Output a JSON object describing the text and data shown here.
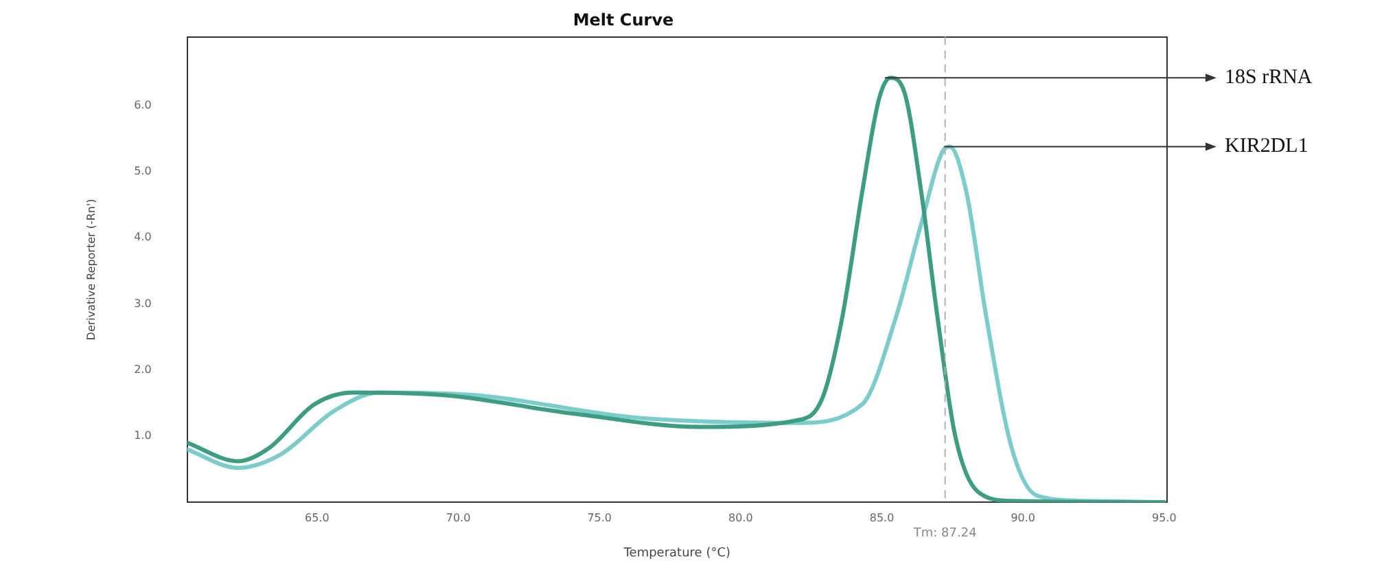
{
  "chart_data": {
    "type": "line",
    "title": "Melt Curve",
    "xlabel": "Temperature (°C)",
    "ylabel": "Derivative Reporter (-Rn')",
    "xlim": [
      60.4,
      95.1
    ],
    "xticks": [
      {
        "value": 65,
        "label": "65.0"
      },
      {
        "value": 70,
        "label": "70.0"
      },
      {
        "value": 75,
        "label": "75.0"
      },
      {
        "value": 80,
        "label": "80.0"
      },
      {
        "value": 85,
        "label": "85.0"
      },
      {
        "value": 90,
        "label": "90.0"
      },
      {
        "value": 95,
        "label": "95.0"
      }
    ],
    "ylim": [
      0,
      7.04
    ],
    "yticks": [
      {
        "value": 1,
        "label": "1.0"
      },
      {
        "value": 2,
        "label": "2.0"
      },
      {
        "value": 3,
        "label": "3.0"
      },
      {
        "value": 4,
        "label": "4.0"
      },
      {
        "value": 5,
        "label": "5.0"
      },
      {
        "value": 6,
        "label": "6.0"
      }
    ],
    "grid": false,
    "legend": false,
    "marker": "none",
    "line_style": "solid",
    "ref_lines": [
      {
        "axis": "x",
        "value": 87.24,
        "label": "Tm: 87.24",
        "color": "#b0b0b0",
        "line_style": "dashed"
      }
    ],
    "series": [
      {
        "name": "18S rRNA",
        "color": "#3d9c82",
        "x": [
          60.4,
          62.2,
          63.3,
          64.9,
          66.3,
          69.5,
          74.1,
          78.6,
          82.0,
          82.9,
          83.6,
          84.3,
          84.9,
          85.3,
          85.8,
          86.4,
          86.97,
          87.6,
          88.4,
          89.6,
          95.0
        ],
        "values": [
          0.9,
          0.62,
          0.82,
          1.48,
          1.66,
          1.62,
          1.34,
          1.14,
          1.24,
          1.58,
          2.8,
          4.68,
          6.1,
          6.42,
          6.2,
          4.68,
          2.8,
          1.0,
          0.16,
          0.02,
          0.0
        ]
      },
      {
        "name": "KIR2DL1",
        "color": "#7ccccc",
        "x": [
          60.4,
          62.2,
          63.7,
          65.6,
          67.2,
          70.6,
          76.3,
          82.0,
          84.3,
          85.5,
          86.4,
          87.2,
          87.4,
          88.0,
          88.7,
          89.6,
          90.5,
          92.3,
          95.0
        ],
        "values": [
          0.8,
          0.52,
          0.72,
          1.38,
          1.66,
          1.62,
          1.28,
          1.2,
          1.48,
          2.8,
          4.22,
          5.34,
          5.38,
          4.68,
          2.8,
          0.82,
          0.1,
          0.02,
          0.0
        ]
      }
    ]
  }
}
